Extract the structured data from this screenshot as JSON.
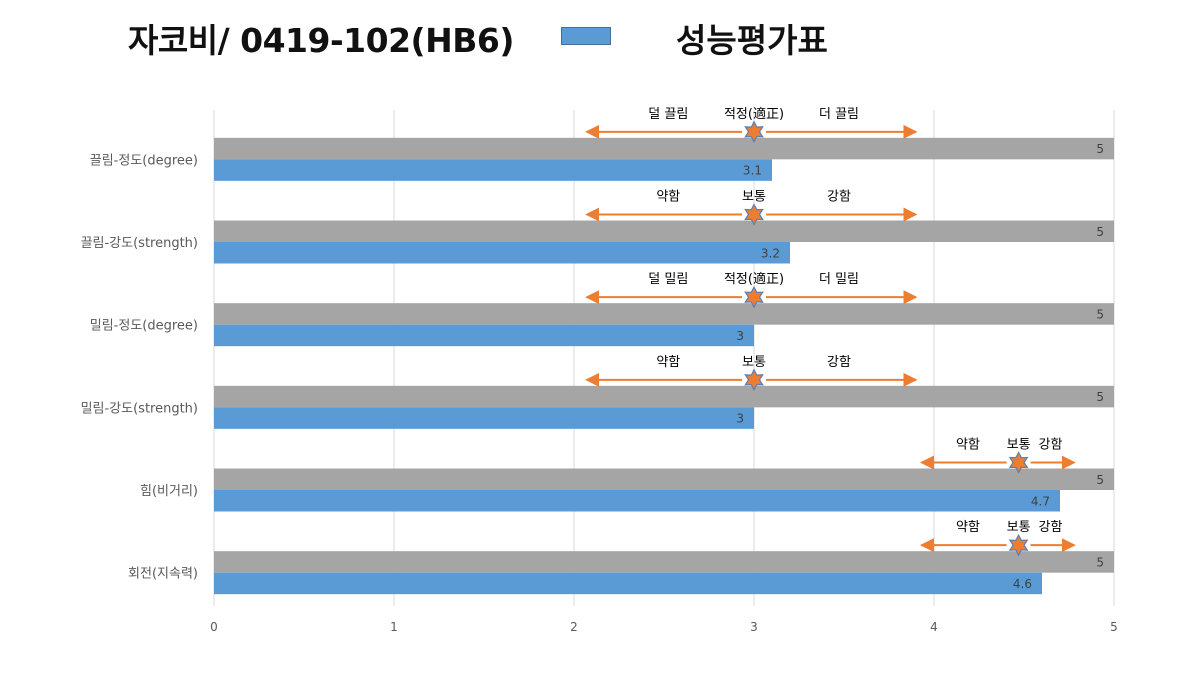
{
  "header": {
    "title": "자코비/ 0419-102(HB6)",
    "legend_label": "성능평가표"
  },
  "colors": {
    "max_bar": "#a5a5a5",
    "score_bar": "#5b9bd5",
    "arrow": "#ed7d31",
    "star_fill": "#ed7d31",
    "star_stroke": "#5b7fb5",
    "grid": "#d9d9d9"
  },
  "chart_data": {
    "type": "bar",
    "orientation": "horizontal",
    "categories": [
      "끌림-정도(degree)",
      "끌림-강도(strength)",
      "밀림-정도(degree)",
      "밀림-강도(strength)",
      "힘(비거리)",
      "회전(지속력)"
    ],
    "series": [
      {
        "values": [
          5,
          5,
          5,
          5,
          5,
          5
        ]
      },
      {
        "name": "성능평가표",
        "values": [
          3.1,
          3.2,
          3,
          3,
          4.7,
          4.6
        ]
      }
    ],
    "xlim": [
      0,
      5
    ],
    "x_ticks": [
      "0",
      "1",
      "2",
      "3",
      "4",
      "5"
    ],
    "grid": true,
    "legend": "top",
    "annotations": [
      {
        "left": "덜 끌림",
        "center": "적정(適正)",
        "right": "더 끌림",
        "marker": 3,
        "from": 2.07,
        "to": 3.9
      },
      {
        "left": "약함",
        "center": "보통",
        "right": "강함",
        "marker": 3,
        "from": 2.07,
        "to": 3.9
      },
      {
        "left": "덜 밀림",
        "center": "적정(適正)",
        "right": "더 밀림",
        "marker": 3,
        "from": 2.07,
        "to": 3.9
      },
      {
        "left": "약함",
        "center": "보통",
        "right": "강함",
        "marker": 3,
        "from": 2.07,
        "to": 3.9
      },
      {
        "left": "약함",
        "center": "보통",
        "right": "강함",
        "marker": 4.47,
        "from": 3.93,
        "to": 4.78
      },
      {
        "left": "약함",
        "center": "보통",
        "right": "강함",
        "marker": 4.47,
        "from": 3.93,
        "to": 4.78
      }
    ]
  }
}
